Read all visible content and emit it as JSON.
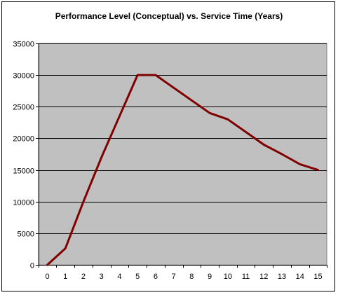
{
  "chart_data": {
    "type": "line",
    "title": "Performance Level (Conceptual) vs. Service Time (Years)",
    "xlabel": "",
    "ylabel": "",
    "x": [
      0,
      1,
      2,
      3,
      4,
      5,
      6,
      7,
      8,
      9,
      10,
      11,
      12,
      13,
      14,
      15
    ],
    "series": [
      {
        "values": [
          0,
          2600,
          10000,
          17000,
          23500,
          30000,
          30000,
          28000,
          26000,
          24000,
          23000,
          21000,
          19000,
          17500,
          15900,
          15000
        ]
      }
    ],
    "ylim": [
      0,
      35000
    ],
    "yticks": [
      0,
      5000,
      10000,
      15000,
      20000,
      25000,
      30000,
      35000
    ],
    "xticks": [
      "0",
      "1",
      "2",
      "3",
      "4",
      "5",
      "6",
      "7",
      "8",
      "9",
      "10",
      "11",
      "12",
      "13",
      "14",
      "15"
    ],
    "grid": "horizontal",
    "legend": "none",
    "colors": {
      "plot_background": "#c0c0c0",
      "line": "#800000",
      "gridline": "#000000"
    }
  }
}
